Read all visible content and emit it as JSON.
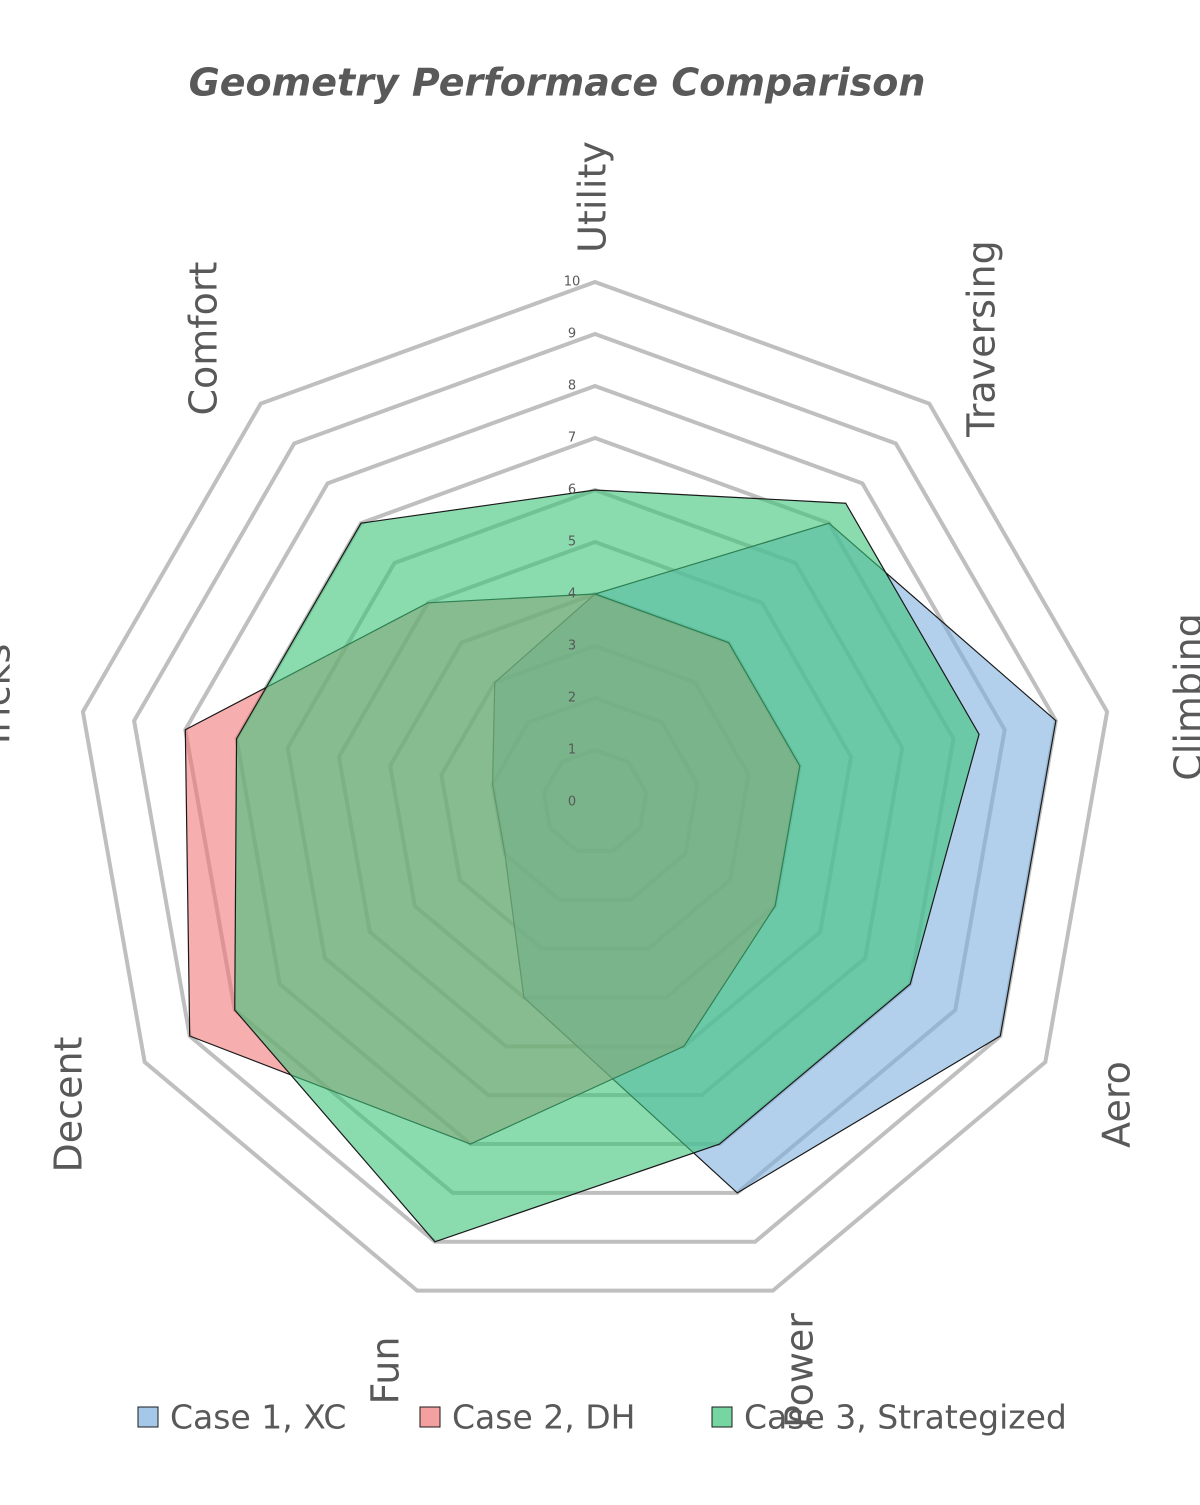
{
  "chart_data": {
    "type": "radar",
    "title": "Geometry Performace Comparison",
    "categories": [
      "Utility",
      "Traversing",
      "Climbing",
      "Aero",
      "Power",
      "Fun",
      "Decent",
      "Tricks",
      "Comfort"
    ],
    "series": [
      {
        "name": "Case 1, XC",
        "color": "#7fb0e0",
        "values": [
          4,
          7,
          9,
          9,
          8,
          4,
          2,
          2,
          3
        ]
      },
      {
        "name": "Case 2, DH",
        "color": "#f07878",
        "values": [
          4,
          4,
          4,
          4,
          5,
          7,
          9,
          8,
          5
        ]
      },
      {
        "name": "Case 3, Strategized",
        "color": "#3cc47a",
        "values": [
          6,
          7.5,
          7.5,
          7,
          7,
          9,
          8,
          7,
          7
        ]
      }
    ],
    "ylim": [
      0,
      10
    ],
    "yticks": [
      0,
      1,
      2,
      3,
      4,
      5,
      6,
      7,
      8,
      9,
      10
    ],
    "grid": true,
    "legend": "bottom"
  }
}
